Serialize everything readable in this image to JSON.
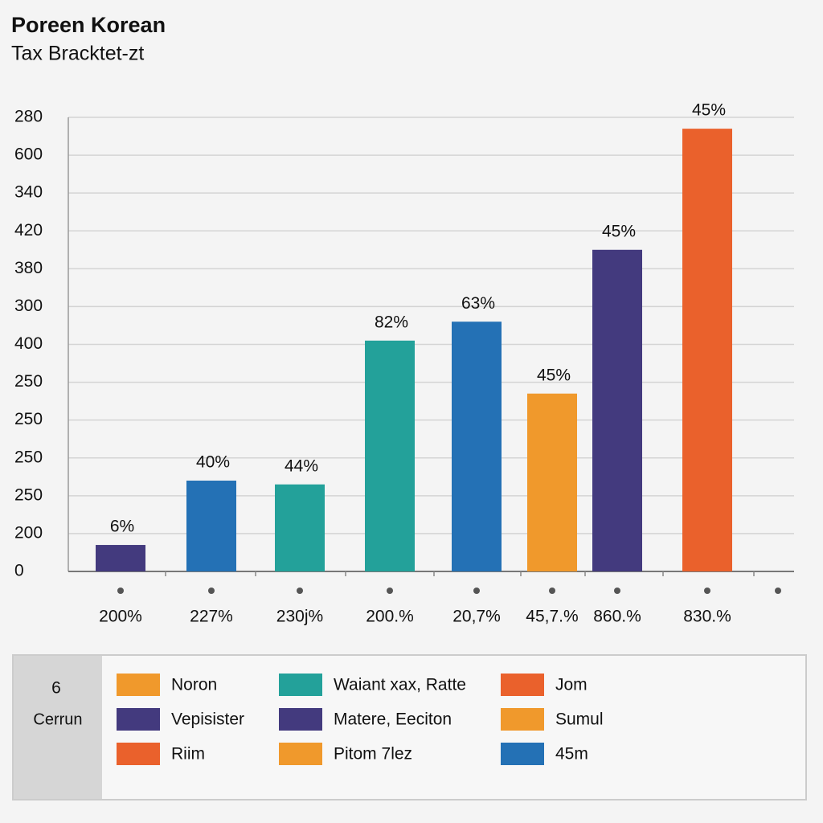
{
  "chart_data": {
    "type": "bar",
    "title": "Poreen Korean",
    "subtitle": "Tax Bracktet-zt",
    "categories": [
      "200%",
      "227%",
      "230j%",
      "200.%",
      "20,7%",
      "45,7.%",
      "860.%",
      "830.%"
    ],
    "values": [
      0.7,
      2.4,
      2.3,
      6.1,
      6.6,
      4.7,
      8.5,
      11.7
    ],
    "annotations": [
      "6%",
      "40%",
      "44%",
      "82%",
      "63%",
      "45%",
      "45%",
      "45%"
    ],
    "colors": [
      "#433a7e",
      "#2471b5",
      "#23a19a",
      "#23a19a",
      "#2471b5",
      "#f0992c",
      "#433a7e",
      "#ea612c"
    ],
    "ylim": [
      0,
      12
    ],
    "yticks": [
      {
        "value": 0,
        "label": "0"
      },
      {
        "value": 1,
        "label": "200"
      },
      {
        "value": 2,
        "label": "250"
      },
      {
        "value": 3,
        "label": "250"
      },
      {
        "value": 4,
        "label": "250"
      },
      {
        "value": 5,
        "label": "250"
      },
      {
        "value": 6,
        "label": "400"
      },
      {
        "value": 7,
        "label": "300"
      },
      {
        "value": 8,
        "label": "380"
      },
      {
        "value": 9,
        "label": "420"
      },
      {
        "value": 10,
        "label": "340"
      },
      {
        "value": 11,
        "label": "600"
      },
      {
        "value": 12,
        "label": "280"
      }
    ],
    "grid": true,
    "legend": {
      "heading": [
        "6",
        "Cerrun"
      ],
      "items": [
        {
          "name": "Noron",
          "color": "#f0992c"
        },
        {
          "name": "Vepisister",
          "color": "#433a7e"
        },
        {
          "name": "Riim",
          "color": "#ea612c"
        },
        {
          "name": "Waiant xax, Ratte",
          "color": "#23a19a"
        },
        {
          "name": "Matere, Eeciton",
          "color": "#433a7e"
        },
        {
          "name": "Pitom 7lez",
          "color": "#f0992c"
        },
        {
          "name": "Jom",
          "color": "#ea612c"
        },
        {
          "name": "Sumul",
          "color": "#f0992c"
        },
        {
          "name": "45m",
          "color": "#2471b5"
        }
      ]
    }
  }
}
